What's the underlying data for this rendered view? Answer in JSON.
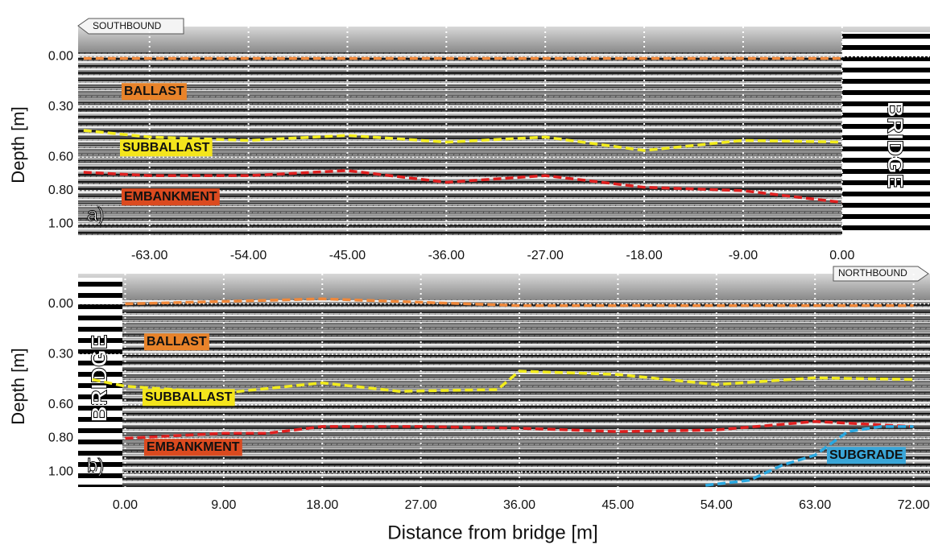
{
  "chart_data": [
    {
      "type": "line",
      "panel_label": "a)",
      "y_label": "Depth [m]",
      "direction": "SOUTHBOUND",
      "bridge_label": "BRIDGE",
      "annotations": [
        "BALLAST",
        "SUBBALLAST",
        "EMBANKMENT"
      ],
      "xlim": [
        -69.5,
        8.0
      ],
      "ylim": [
        -0.18,
        1.07
      ],
      "grid": true,
      "xticks": [
        {
          "value": -63,
          "label": "-63.00"
        },
        {
          "value": -54,
          "label": "-54.00"
        },
        {
          "value": -45,
          "label": "-45.00"
        },
        {
          "value": -36,
          "label": "-36.00"
        },
        {
          "value": -27,
          "label": "-27.00"
        },
        {
          "value": -18,
          "label": "-18.00"
        },
        {
          "value": -9,
          "label": "-9.00"
        },
        {
          "value": 0,
          "label": "0.00"
        }
      ],
      "yticks": [
        {
          "value": 0,
          "label": "0.00"
        },
        {
          "value": 0.3,
          "label": "0.30"
        },
        {
          "value": 0.6,
          "label": "0.60"
        },
        {
          "value": 0.8,
          "label": "0.80"
        },
        {
          "value": 1.0,
          "label": "1.00"
        }
      ],
      "series": [
        {
          "color": "#f0883a",
          "x": [
            -69,
            -54,
            -36,
            -18,
            0
          ],
          "values": [
            0.01,
            0.01,
            0.01,
            0.01,
            0.01
          ]
        },
        {
          "color": "#f2ec1c",
          "x": [
            -69,
            -63,
            -54,
            -45,
            -36,
            -27,
            -18,
            -9,
            0
          ],
          "values": [
            0.44,
            0.48,
            0.5,
            0.47,
            0.51,
            0.48,
            0.56,
            0.5,
            0.51
          ]
        },
        {
          "color": "#e02020",
          "x": [
            -69,
            -63,
            -54,
            -45,
            -36,
            -27,
            -18,
            -9,
            0
          ],
          "values": [
            0.69,
            0.71,
            0.71,
            0.68,
            0.75,
            0.71,
            0.78,
            0.8,
            0.87
          ]
        }
      ]
    },
    {
      "type": "line",
      "panel_label": "b)",
      "y_label": "Depth [m]",
      "x_label": "Distance from bridge [m]",
      "direction": "NORTHBOUND",
      "bridge_label": "BRIDGE",
      "annotations": [
        "BALLAST",
        "SUBBALLAST",
        "EMBANKMENT",
        "SUBGRADE"
      ],
      "xlim": [
        -4.3,
        73.5
      ],
      "ylim": [
        -0.18,
        1.09
      ],
      "grid": true,
      "xticks": [
        {
          "value": 0,
          "label": "0.00"
        },
        {
          "value": 9,
          "label": "9.00"
        },
        {
          "value": 18,
          "label": "18.00"
        },
        {
          "value": 27,
          "label": "27.00"
        },
        {
          "value": 36,
          "label": "36.00"
        },
        {
          "value": 45,
          "label": "45.00"
        },
        {
          "value": 54,
          "label": "54.00"
        },
        {
          "value": 63,
          "label": "63.00"
        },
        {
          "value": 72,
          "label": "72.00"
        }
      ],
      "yticks": [
        {
          "value": 0,
          "label": "0.00"
        },
        {
          "value": 0.3,
          "label": "0.30"
        },
        {
          "value": 0.6,
          "label": "0.60"
        },
        {
          "value": 0.8,
          "label": "0.80"
        },
        {
          "value": 1.0,
          "label": "1.00"
        }
      ],
      "series": [
        {
          "color": "#f0883a",
          "x": [
            0,
            18,
            27,
            36,
            72
          ],
          "values": [
            0.0,
            -0.03,
            -0.01,
            0.01,
            0.01
          ]
        },
        {
          "color": "#f2ec1c",
          "x": [
            -3,
            0,
            9,
            18,
            25,
            34,
            36,
            45,
            54,
            63,
            72
          ],
          "values": [
            0.45,
            0.49,
            0.53,
            0.47,
            0.52,
            0.51,
            0.4,
            0.42,
            0.48,
            0.44,
            0.45
          ]
        },
        {
          "color": "#e02020",
          "x": [
            0,
            9,
            13,
            18,
            27,
            36,
            45,
            54,
            63,
            72
          ],
          "values": [
            0.8,
            0.77,
            0.77,
            0.73,
            0.73,
            0.74,
            0.76,
            0.75,
            0.7,
            0.73
          ]
        },
        {
          "color": "#2aa8e0",
          "x": [
            53,
            57,
            60,
            63,
            66,
            69,
            72
          ],
          "values": [
            1.08,
            1.05,
            0.96,
            0.9,
            0.76,
            0.73,
            0.73
          ]
        }
      ]
    }
  ]
}
